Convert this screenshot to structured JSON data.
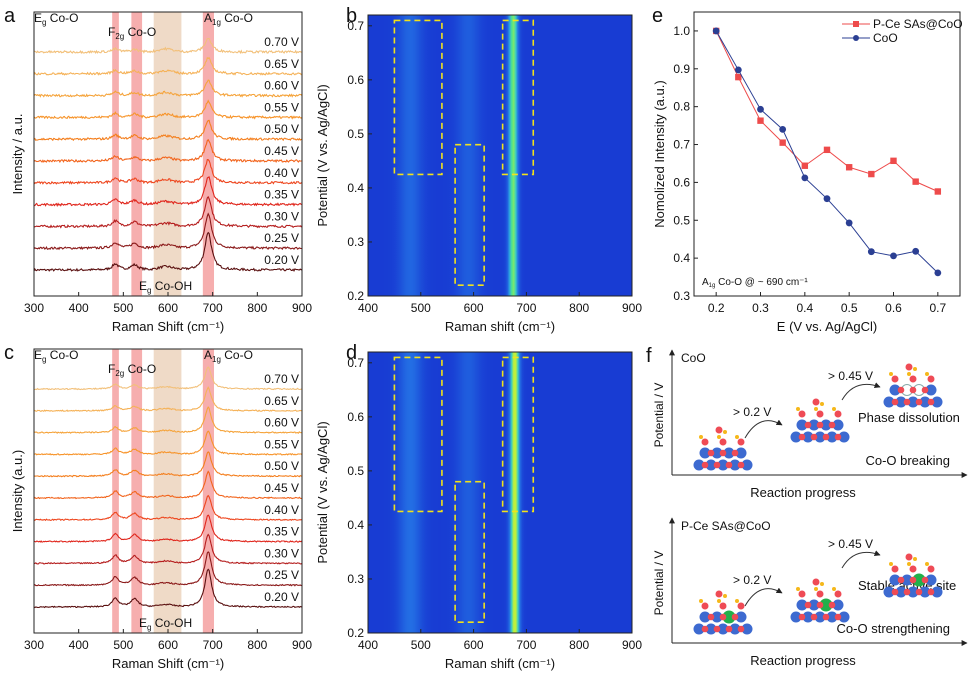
{
  "panel_letters": {
    "a": "a",
    "b": "b",
    "c": "c",
    "d": "d",
    "e": "e",
    "f": "f"
  },
  "chart_data": [
    {
      "id": "a",
      "type": "line",
      "title": "",
      "xlabel": "Raman Shift (cm⁻¹)",
      "ylabel": "Intensity / a.u.",
      "xlim": [
        300,
        900
      ],
      "xticks": [
        "300",
        "400",
        "500",
        "600",
        "700",
        "800",
        "900"
      ],
      "potentials": [
        "0.20 V",
        "0.25 V",
        "0.30 V",
        "0.35 V",
        "0.40 V",
        "0.45 V",
        "0.50 V",
        "0.55 V",
        "0.60 V",
        "0.65 V",
        "0.70 V"
      ],
      "colors": [
        "#5a1010",
        "#8b1a1a",
        "#b51e1e",
        "#e0261c",
        "#ee461e",
        "#f2641c",
        "#f47f1e",
        "#f7942a",
        "#f5a43c",
        "#f5b258",
        "#f2c07a"
      ],
      "a1g_relative_intensity": [
        1.0,
        0.897,
        0.793,
        0.74,
        0.612,
        0.557,
        0.493,
        0.417,
        0.406,
        0.418,
        0.361
      ],
      "bands": [
        {
          "main": "E",
          "sub": "g",
          "rest": " Co-O",
          "range": [
            475,
            490
          ],
          "color": "#f4a0a0"
        },
        {
          "main": "F",
          "sub": "2g",
          "rest": " Co-O",
          "range": [
            518,
            542
          ],
          "color": "#f4a0a0"
        },
        {
          "main": "E",
          "sub": "g",
          "rest": " Co-OH",
          "range": [
            568,
            630
          ],
          "color": "#ecd3bd"
        },
        {
          "main": "A",
          "sub": "1g",
          "rest": " Co-O",
          "range": [
            678,
            703
          ],
          "color": "#f4a0a0"
        }
      ]
    },
    {
      "id": "b",
      "type": "heatmap",
      "xlabel": "Raman shift (cm⁻¹)",
      "ylabel": "Potential (V vs. Ag/AgCl)",
      "xlim": [
        400,
        900
      ],
      "ylim": [
        0.2,
        0.72
      ],
      "xticks": [
        "400",
        "500",
        "600",
        "700",
        "800",
        "900"
      ],
      "yticks": [
        "0.2",
        "0.3",
        "0.4",
        "0.5",
        "0.6",
        "0.7"
      ],
      "bands_cm": [
        480,
        590,
        675
      ],
      "band_strength": [
        0.25,
        0.2,
        0.85
      ],
      "highlight_boxes": [
        {
          "x": [
            450,
            540
          ],
          "y": [
            0.425,
            0.71
          ]
        },
        {
          "x": [
            565,
            620
          ],
          "y": [
            0.22,
            0.48
          ]
        },
        {
          "x": [
            655,
            713
          ],
          "y": [
            0.425,
            0.71
          ]
        }
      ]
    },
    {
      "id": "c",
      "type": "line",
      "xlabel": "Raman Shift (cm⁻¹)",
      "ylabel": "Intensity (a.u.)",
      "xlim": [
        300,
        900
      ],
      "xticks": [
        "300",
        "400",
        "500",
        "600",
        "700",
        "800",
        "900"
      ],
      "potentials": [
        "0.20 V",
        "0.25 V",
        "0.30 V",
        "0.35 V",
        "0.40 V",
        "0.45 V",
        "0.50 V",
        "0.55 V",
        "0.60 V",
        "0.65 V",
        "0.70 V"
      ],
      "a1g_relative_intensity": [
        1.0,
        0.878,
        0.763,
        0.705,
        0.644,
        0.686,
        0.64,
        0.622,
        0.657,
        0.602,
        0.576
      ],
      "bands": [
        {
          "main": "E",
          "sub": "g",
          "rest": " Co-O"
        },
        {
          "main": "F",
          "sub": "2g",
          "rest": " Co-O"
        },
        {
          "main": "E",
          "sub": "g",
          "rest": " Co-OH"
        },
        {
          "main": "A",
          "sub": "1g",
          "rest": " Co-O"
        }
      ]
    },
    {
      "id": "d",
      "type": "heatmap",
      "xlabel": "Raman shift (cm⁻¹)",
      "ylabel": "Potential (V vs. Ag/AgCl)",
      "xlim": [
        400,
        900
      ],
      "ylim": [
        0.2,
        0.72
      ],
      "xticks": [
        "400",
        "500",
        "600",
        "700",
        "800",
        "900"
      ],
      "yticks": [
        "0.2",
        "0.3",
        "0.4",
        "0.5",
        "0.6",
        "0.7"
      ],
      "bands_cm": [
        480,
        590,
        678
      ],
      "band_strength": [
        0.3,
        0.2,
        1.0
      ]
    },
    {
      "id": "e",
      "type": "line",
      "xlabel": "E (V vs. Ag/AgCl)",
      "ylabel": "Nomolized Intensity (a.u.)",
      "annotation": {
        "main": "A",
        "sub": "1g",
        "rest": " Co-O @ ~ 690 cm⁻¹"
      },
      "xlim": [
        0.15,
        0.75
      ],
      "ylim": [
        0.3,
        1.05
      ],
      "xticks": [
        "0.2",
        "0.3",
        "0.4",
        "0.5",
        "0.6",
        "0.7"
      ],
      "yticks": [
        "0.3",
        "0.4",
        "0.5",
        "0.6",
        "0.7",
        "0.8",
        "0.9",
        "1.0"
      ],
      "x": [
        0.2,
        0.25,
        0.3,
        0.35,
        0.4,
        0.45,
        0.5,
        0.55,
        0.6,
        0.65,
        0.7
      ],
      "legend_position": "top-right",
      "series": [
        {
          "name": "P-Ce SAs@CoO",
          "color": "#ee4b4b",
          "marker": "square",
          "values": [
            1.0,
            0.878,
            0.763,
            0.705,
            0.644,
            0.686,
            0.64,
            0.622,
            0.657,
            0.602,
            0.576
          ]
        },
        {
          "name": "CoO",
          "color": "#2b3f93",
          "marker": "circle",
          "values": [
            1.0,
            0.897,
            0.793,
            0.74,
            0.612,
            0.557,
            0.493,
            0.417,
            0.406,
            0.418,
            0.361
          ]
        }
      ]
    }
  ],
  "schematic": {
    "top": {
      "title": "CoO",
      "ylabel": "Potential / V",
      "xlabel": "Reaction progress",
      "step1": "> 0.2 V",
      "step2": "> 0.45 V",
      "state": "Phase dissolution",
      "note": "Co-O breaking"
    },
    "bottom": {
      "title": "P-Ce SAs@CoO",
      "ylabel": "Potential / V",
      "xlabel": "Reaction progress",
      "step1": "> 0.2 V",
      "step2": "> 0.45 V",
      "state": "Stable active site",
      "note": "Co-O strengthening"
    }
  }
}
